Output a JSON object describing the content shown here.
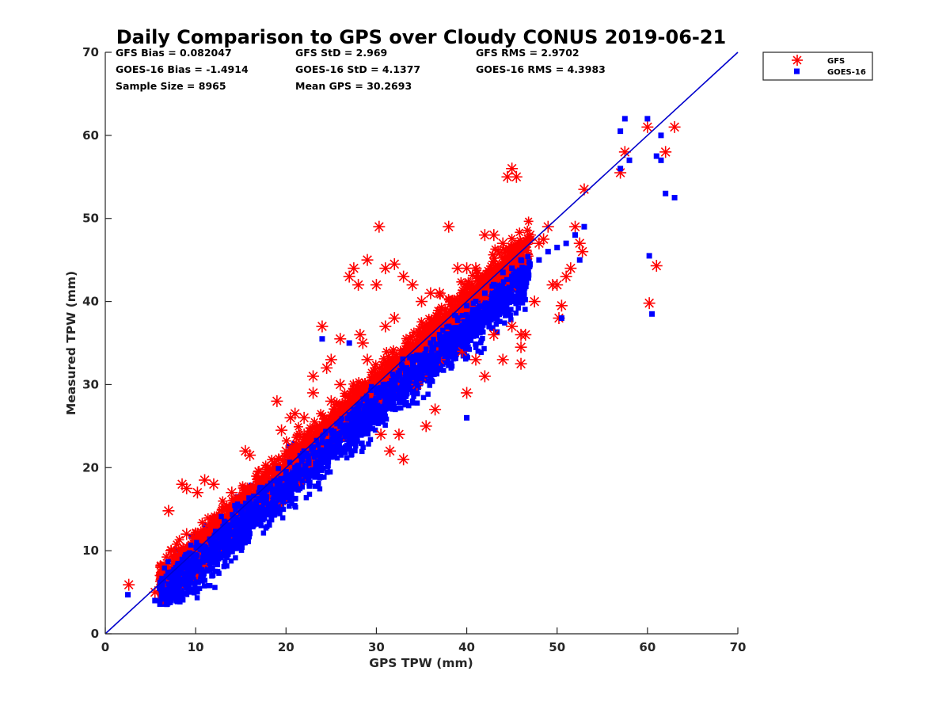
{
  "chart_data": {
    "type": "scatter",
    "title": "Daily Comparison to GPS over Cloudy CONUS 2019-06-21",
    "xlabel": "GPS TPW (mm)",
    "ylabel": "Measured TPW (mm)",
    "xlim": [
      0,
      70
    ],
    "ylim": [
      0,
      70
    ],
    "xticks": [
      "0",
      "10",
      "20",
      "30",
      "40",
      "50",
      "60",
      "70"
    ],
    "yticks": [
      "0",
      "10",
      "20",
      "30",
      "40",
      "50",
      "60",
      "70"
    ],
    "grid": false,
    "legend_position": "outside top-right",
    "reference_line": {
      "x": [
        0,
        70
      ],
      "y": [
        0,
        70
      ],
      "color": "#0000cc"
    },
    "stats": [
      [
        "GFS Bias = 0.082047",
        "GFS StD = 2.969",
        "GFS RMS = 2.9702"
      ],
      [
        "GOES-16 Bias = -1.4914",
        "GOES-16 StD = 4.1377",
        "GOES-16 RMS = 4.3983"
      ],
      [
        "Sample Size = 8965",
        "Mean GPS = 30.2693",
        ""
      ]
    ],
    "series": [
      {
        "name": "GFS",
        "marker": "asterisk",
        "color": "#ff0000",
        "x": [
          2.6,
          5.5,
          6.2,
          7.0,
          7.3,
          8.5,
          9.0,
          10.2,
          11.0,
          12.0,
          15.5,
          16.0,
          17.0,
          19.0,
          19.5,
          20.5,
          21.0,
          22.0,
          23.0,
          24.0,
          25.0,
          26.0,
          27.0,
          27.5,
          28.0,
          28.2,
          29.0,
          30.0,
          30.3,
          31.0,
          32.0,
          33.0,
          34.0,
          35.0,
          36.0,
          37.0,
          38.0,
          39.0,
          40.0,
          41.0,
          42.0,
          43.0,
          44.0,
          44.5,
          45.0,
          45.5,
          46.0,
          46.0,
          47.0,
          48.0,
          48.5,
          49.0,
          50.0,
          50.5,
          51.0,
          52.0,
          52.5,
          53.0,
          57.0,
          57.5,
          60.0,
          60.2,
          61.0,
          62.0,
          63.0,
          29.0,
          31.0,
          32.0,
          33.5,
          35.0,
          37.0,
          38.0,
          39.5,
          41.0,
          43.0,
          45.0,
          46.5,
          47.5,
          26.0,
          27.0,
          25.0,
          23.0,
          22.0,
          20.0,
          18.0,
          14.0,
          13.0,
          12.5,
          11.0,
          10.0,
          9.0,
          8.0,
          6.5,
          31.5,
          32.5,
          33.0,
          35.5,
          36.5,
          40.0,
          42.0,
          44.0,
          46.0,
          49.5,
          50.2,
          51.5,
          52.8,
          24.5,
          28.5,
          30.5,
          34.5,
          38.5,
          21.5,
          19.5,
          16.5,
          9.5,
          7.5
        ],
        "y": [
          5.9,
          5.0,
          8.0,
          14.8,
          10.0,
          18.0,
          17.5,
          17.0,
          18.5,
          18.0,
          22.0,
          21.5,
          19.5,
          28.0,
          24.5,
          26.0,
          26.5,
          26.0,
          31.0,
          37.0,
          33.0,
          35.5,
          43.0,
          44.0,
          42.0,
          36.0,
          45.0,
          42.0,
          49.0,
          44.0,
          44.5,
          43.0,
          42.0,
          40.0,
          41.0,
          41.0,
          49.0,
          44.0,
          44.0,
          44.0,
          48.0,
          48.0,
          47.0,
          55.0,
          56.0,
          55.0,
          32.5,
          36.0,
          48.0,
          47.0,
          47.5,
          49.0,
          42.0,
          39.5,
          43.0,
          49.0,
          47.0,
          53.5,
          55.5,
          58.0,
          61.0,
          39.8,
          44.3,
          58.0,
          61.0,
          33.0,
          37.0,
          38.0,
          35.0,
          31.0,
          33.0,
          36.0,
          34.0,
          33.0,
          36.0,
          37.0,
          36.0,
          40.0,
          30.0,
          26.0,
          28.0,
          29.0,
          24.0,
          22.0,
          20.0,
          17.0,
          15.0,
          14.0,
          12.0,
          11.0,
          12.0,
          9.0,
          7.0,
          22.0,
          24.0,
          21.0,
          25.0,
          27.0,
          29.0,
          31.0,
          33.0,
          34.5,
          42.0,
          38.0,
          44.0,
          46.0,
          32.0,
          35.0,
          24.0,
          30.0,
          36.0,
          18.5,
          16.0,
          14.0,
          10.0,
          6.5
        ]
      },
      {
        "name": "GOES-16",
        "marker": "square",
        "color": "#0000ff",
        "note": "dense cloud of 8965 points approximately following y = 0.95x - 1.5 with spread ~4 mm; outliers listed",
        "x": [
          2.5,
          5.5,
          6.0,
          7.0,
          8.0,
          9.0,
          10.0,
          11.0,
          12.0,
          13.0,
          14.0,
          15.0,
          16.0,
          17.0,
          18.0,
          19.0,
          20.0,
          21.0,
          22.0,
          23.0,
          24.0,
          25.0,
          26.0,
          27.0,
          28.0,
          29.0,
          30.0,
          31.0,
          32.0,
          33.0,
          34.0,
          35.0,
          36.0,
          37.0,
          38.0,
          39.0,
          40.0,
          41.0,
          42.0,
          43.0,
          44.0,
          45.0,
          46.0,
          47.0,
          48.0,
          49.0,
          50.0,
          51.0,
          52.0,
          53.0,
          57.0,
          57.5,
          57.0,
          60.0,
          60.2,
          60.5,
          61.0,
          61.5,
          62.0,
          63.0,
          61.5,
          24.0,
          27.0,
          34.5,
          40.0,
          50.5,
          52.5,
          58.0
        ],
        "y": [
          4.7,
          4.0,
          5.5,
          6.0,
          7.0,
          8.5,
          9.0,
          10.0,
          11.0,
          12.5,
          13.0,
          14.5,
          16.0,
          17.0,
          17.5,
          18.5,
          19.5,
          20.0,
          21.5,
          22.5,
          23.0,
          24.5,
          25.0,
          26.0,
          27.5,
          28.0,
          29.0,
          30.0,
          31.0,
          32.0,
          33.0,
          33.5,
          35.0,
          36.0,
          37.0,
          38.0,
          39.5,
          40.0,
          41.0,
          42.0,
          43.5,
          44.0,
          45.0,
          44.5,
          45.0,
          46.0,
          46.5,
          47.0,
          48.0,
          49.0,
          60.5,
          62.0,
          56.0,
          62.0,
          45.5,
          38.5,
          57.5,
          60.0,
          53.0,
          52.5,
          57.0,
          35.5,
          35.0,
          31.0,
          26.0,
          38.0,
          45.0,
          57.0
        ]
      }
    ]
  }
}
